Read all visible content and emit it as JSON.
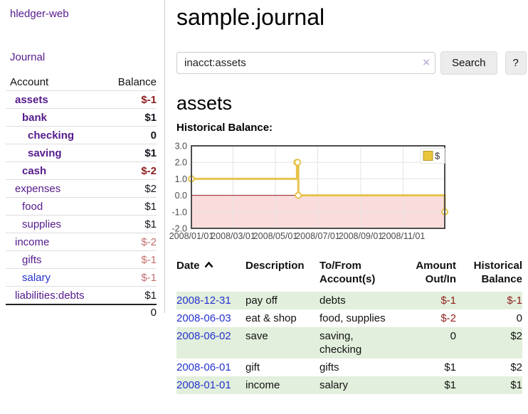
{
  "colors": {
    "link_purple": "#551a8b",
    "link_blue": "#2432cf",
    "negative_strong": "#8f1d1d",
    "negative_muted": "#c46e6e",
    "row_stripe_green": "#e2efdc",
    "chart_line_gold": "#e7c34b",
    "chart_negative_fill": "#fbdcdc",
    "chart_zero_line": "#8b1a1a"
  },
  "sidebar": {
    "brand": "hledger-web",
    "journal_link": "Journal",
    "account_header": "Account",
    "balance_header": "Balance",
    "accounts": [
      {
        "name": "assets",
        "balance": "$-1"
      },
      {
        "name": "bank",
        "balance": "$1"
      },
      {
        "name": "checking",
        "balance": "0"
      },
      {
        "name": "saving",
        "balance": "$1"
      },
      {
        "name": "cash",
        "balance": "$-2"
      },
      {
        "name": "expenses",
        "balance": "$2"
      },
      {
        "name": "food",
        "balance": "$1"
      },
      {
        "name": "supplies",
        "balance": "$1"
      },
      {
        "name": "income",
        "balance": "$-2"
      },
      {
        "name": "gifts",
        "balance": "$-1"
      },
      {
        "name": "salary",
        "balance": "$-1"
      },
      {
        "name": "liabilities:debts",
        "balance": "$1"
      }
    ],
    "total": "0"
  },
  "main": {
    "title": "sample.journal",
    "search": {
      "value": "inacct:assets",
      "clear": "×",
      "search_button": "Search",
      "help_button": "?"
    },
    "account_heading": "assets",
    "chart_heading": "Historical Balance:"
  },
  "chart_data": {
    "type": "line",
    "title": "Historical Balance",
    "step": true,
    "series": [
      {
        "name": "$",
        "points": [
          [
            "2008-01-01",
            1
          ],
          [
            "2008-06-01",
            2
          ],
          [
            "2008-06-02",
            2
          ],
          [
            "2008-06-03",
            0
          ],
          [
            "2008-12-31",
            -1
          ]
        ]
      }
    ],
    "xlim": [
      "2008-01-01",
      "2008-12-31"
    ],
    "ylim": [
      -2,
      3
    ],
    "y_ticks": [
      3.0,
      2.0,
      1.0,
      0.0,
      -1.0,
      -2.0
    ],
    "x_ticks": [
      "2008/01/01",
      "2008/03/01",
      "2008/05/01",
      "2008/07/01",
      "2008/09/01",
      "2008/11/01"
    ],
    "legend": {
      "label": "$",
      "position": "top-right"
    },
    "grid": true,
    "negative_region_fill": "#fbdcdc",
    "line_color": "#e7c34b"
  },
  "register": {
    "headers": {
      "date": "Date",
      "description": "Description",
      "accounts": "To/From Account(s)",
      "amount": "Amount Out/In",
      "balance": "Historical Balance"
    },
    "sort": "ascending",
    "rows": [
      {
        "date": "2008-12-31",
        "description": "pay off",
        "accounts": "debts",
        "amount": "$-1",
        "balance": "$-1"
      },
      {
        "date": "2008-06-03",
        "description": "eat & shop",
        "accounts": "food, supplies",
        "amount": "$-2",
        "balance": "0"
      },
      {
        "date": "2008-06-02",
        "description": "save",
        "accounts": "saving, checking",
        "amount": "0",
        "balance": "$2"
      },
      {
        "date": "2008-06-01",
        "description": "gift",
        "accounts": "gifts",
        "amount": "$1",
        "balance": "$2"
      },
      {
        "date": "2008-01-01",
        "description": "income",
        "accounts": "salary",
        "amount": "$1",
        "balance": "$1"
      }
    ]
  }
}
